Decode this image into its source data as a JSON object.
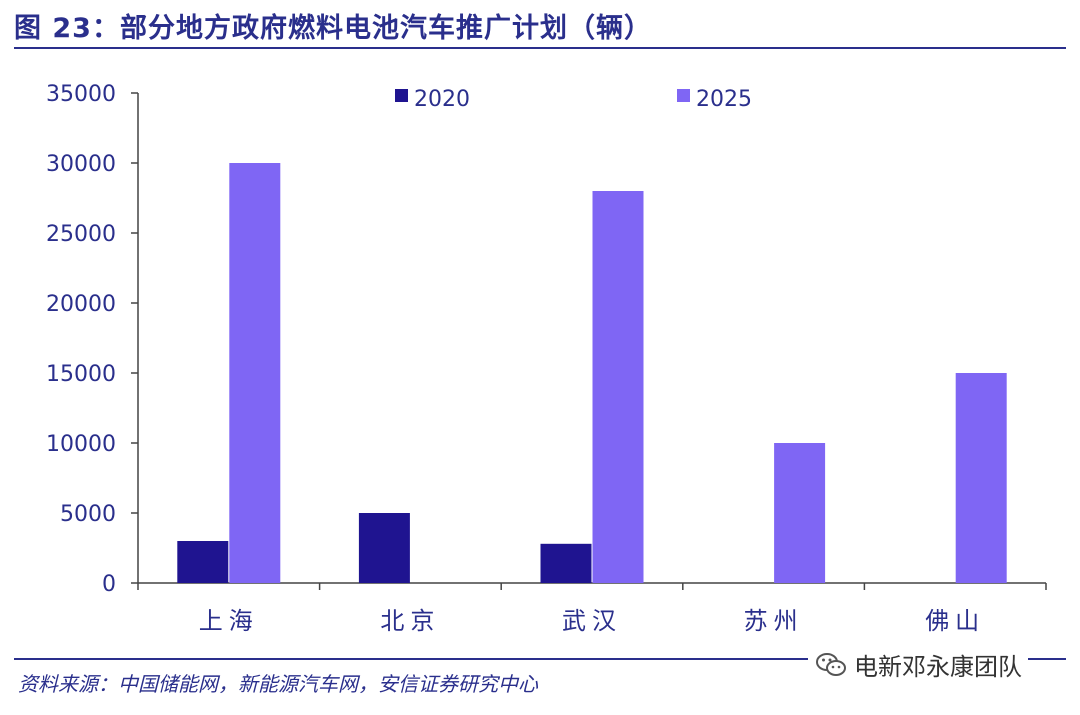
{
  "header": {
    "figure_title": "图 23：部分地方政府燃料电池汽车推广计划（辆）"
  },
  "footer": {
    "source": "资料来源：中国储能网，新能源汽车网，安信证券研究中心",
    "watermark": "电新邓永康团队",
    "watermark_icon": "wechat-icon"
  },
  "chart_data": {
    "type": "bar",
    "title": "部分地方政府燃料电池汽车推广计划（辆）",
    "categories": [
      "上海",
      "北京",
      "武汉",
      "苏州",
      "佛山"
    ],
    "series": [
      {
        "name": "2020",
        "values": [
          3000,
          5000,
          2800,
          0,
          0
        ],
        "color": "#1f1490"
      },
      {
        "name": "2025",
        "values": [
          30000,
          0,
          28000,
          10000,
          15000
        ],
        "color": "#7f66f4"
      }
    ],
    "yticks": [
      0,
      5000,
      10000,
      15000,
      20000,
      25000,
      30000,
      35000
    ],
    "ylim": [
      0,
      35000
    ],
    "grid": false,
    "legend": "top-center"
  }
}
